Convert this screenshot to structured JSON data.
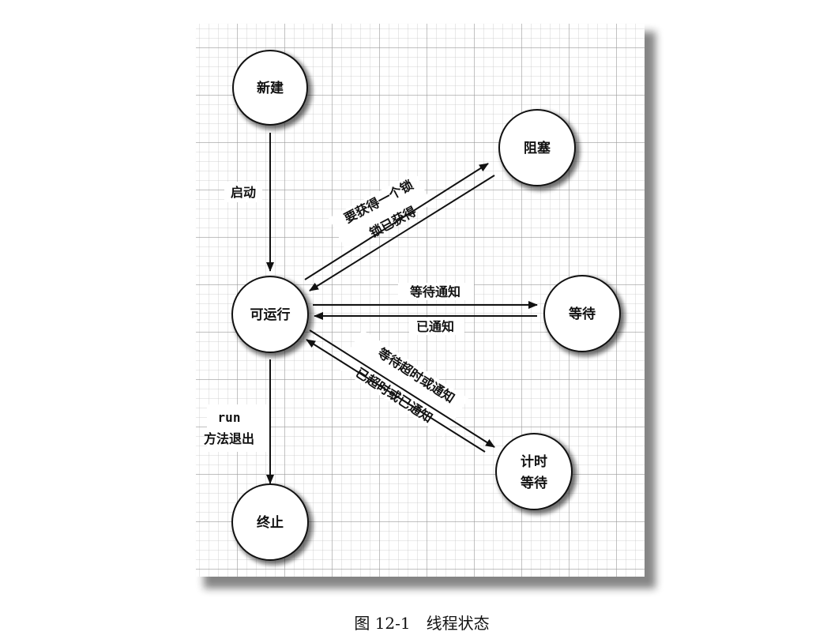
{
  "diagram": {
    "nodes": {
      "new": "新建",
      "runnable": "可运行",
      "blocked": "阻塞",
      "waiting": "等待",
      "timed_waiting_line1": "计时",
      "timed_waiting_line2": "等待",
      "terminated": "终止"
    },
    "edges": {
      "start": "启动",
      "acquire_lock": "要获得一个锁",
      "lock_acquired": "锁已获得",
      "wait_notify": "等待通知",
      "notified": "已通知",
      "wait_timeout_notify": "等待超时或通知",
      "timed_out_or_notified": "已超时或已通知",
      "run_line1": "run",
      "run_line2": "方法退出"
    }
  },
  "caption": "图 12-1　线程状态"
}
